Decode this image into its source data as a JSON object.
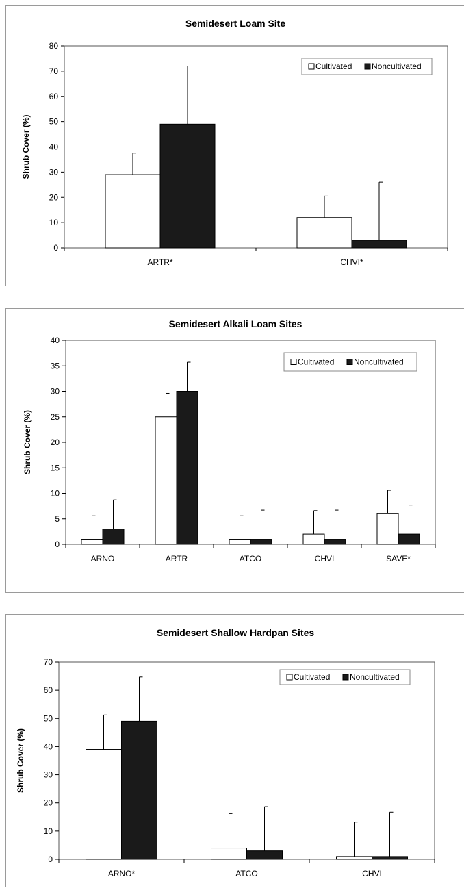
{
  "colors": {
    "cultivated": "#ffffff",
    "noncultivated": "#1a1a1a",
    "axis": "#000000",
    "legend_border": "#888888"
  },
  "chart_data": [
    {
      "type": "bar",
      "title": "Semidesert Loam Site",
      "ylabel": "Shrub Cover (%)",
      "xlabel": "",
      "ylim": [
        0,
        80
      ],
      "yticks": [
        0,
        10,
        20,
        30,
        40,
        50,
        60,
        70,
        80
      ],
      "categories": [
        "ARTR*",
        "CHVI*"
      ],
      "series": [
        {
          "name": "Cultivated",
          "values": [
            29,
            12
          ],
          "error": [
            8.5,
            8.5
          ]
        },
        {
          "name": "Noncultivated",
          "values": [
            49,
            3
          ],
          "error": [
            23,
            23
          ]
        }
      ],
      "legend": "top-right",
      "grid": false
    },
    {
      "type": "bar",
      "title": "Semidesert Alkali Loam Sites",
      "ylabel": "Shrub Cover (%)",
      "xlabel": "",
      "ylim": [
        0,
        40
      ],
      "yticks": [
        0,
        5,
        10,
        15,
        20,
        25,
        30,
        35,
        40
      ],
      "categories": [
        "ARNO",
        "ARTR",
        "ATCO",
        "CHVI",
        "SAVE*"
      ],
      "series": [
        {
          "name": "Cultivated",
          "values": [
            1,
            25,
            1,
            2,
            6
          ],
          "error": [
            4.6,
            4.6,
            4.6,
            4.6,
            4.6
          ]
        },
        {
          "name": "Noncultivated",
          "values": [
            3,
            30,
            1,
            1,
            2
          ],
          "error": [
            5.7,
            5.7,
            5.7,
            5.7,
            5.7
          ]
        }
      ],
      "legend": "top-right",
      "grid": false
    },
    {
      "type": "bar",
      "title": "Semidesert Shallow Hardpan Sites",
      "ylabel": "Shrub Cover (%)",
      "xlabel": "",
      "ylim": [
        0,
        70
      ],
      "yticks": [
        0,
        10,
        20,
        30,
        40,
        50,
        60,
        70
      ],
      "categories": [
        "ARNO*",
        "ATCO",
        "CHVI"
      ],
      "series": [
        {
          "name": "Cultivated",
          "values": [
            39,
            4,
            1
          ],
          "error": [
            12.2,
            12.2,
            12.2
          ]
        },
        {
          "name": "Noncultivated",
          "values": [
            49,
            3,
            1
          ],
          "error": [
            15.7,
            15.7,
            15.7
          ]
        }
      ],
      "legend": "top-right",
      "grid": false
    }
  ]
}
